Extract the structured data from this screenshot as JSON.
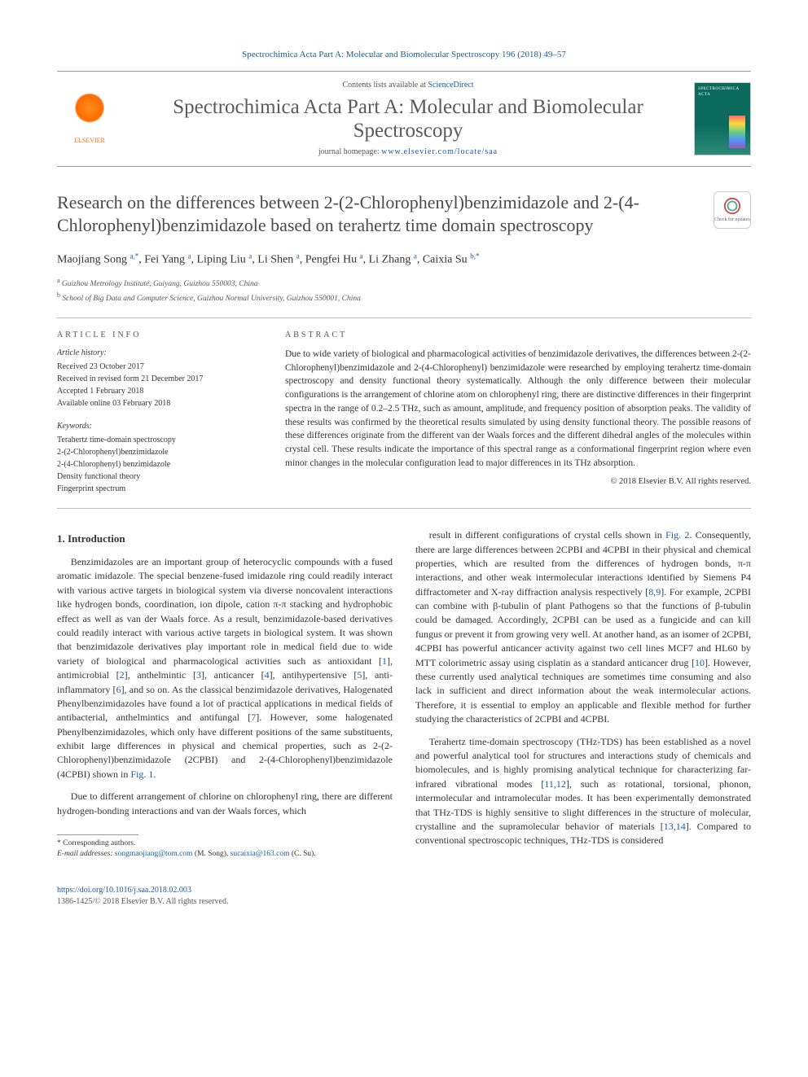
{
  "journal_ref": "Spectrochimica Acta Part A: Molecular and Biomolecular Spectroscopy 196 (2018) 49–57",
  "header": {
    "contents_prefix": "Contents lists available at ",
    "contents_link": "ScienceDirect",
    "journal_title": "Spectrochimica Acta Part A: Molecular and Biomolecular Spectroscopy",
    "homepage_prefix": "journal homepage: ",
    "homepage_url": "www.elsevier.com/locate/saa",
    "elsevier_label": "ELSEVIER"
  },
  "article": {
    "title": "Research on the differences between 2-(2-Chlorophenyl)benzimidazole and 2-(4-Chlorophenyl)benzimidazole based on terahertz time domain spectroscopy",
    "check_badge": "Check for updates"
  },
  "authors_html": "Maojiang Song <sup>a,*</sup>, Fei Yang <sup>a</sup>, Liping Liu <sup>a</sup>, Li Shen <sup>a</sup>, Pengfei Hu <sup>a</sup>, Li Zhang <sup>a</sup>, Caixia Su <sup>b,*</sup>",
  "affiliations": [
    {
      "sup": "a",
      "text": "Guizhou Metrology Institute, Guiyang, Guizhou 550003, China"
    },
    {
      "sup": "b",
      "text": "School of Big Data and Computer Science, Guizhou Normal University, Guizhou 550001, China"
    }
  ],
  "info_label": "ARTICLE INFO",
  "abstract_label": "ABSTRACT",
  "history": {
    "label": "Article history:",
    "items": [
      "Received 23 October 2017",
      "Received in revised form 21 December 2017",
      "Accepted 1 February 2018",
      "Available online 03 February 2018"
    ]
  },
  "keywords": {
    "label": "Keywords:",
    "items": [
      "Terahertz time-domain spectroscopy",
      "2-(2-Chlorophenyl)benzimidazole",
      "2-(4-Chlorophenyl) benzimidazole",
      "Density functional theory",
      "Fingerprint spectrum"
    ]
  },
  "abstract": "Due to wide variety of biological and pharmacological activities of benzimidazole derivatives, the differences between 2-(2-Chlorophenyl)benzimidazole and 2-(4-Chlorophenyl) benzimidazole were researched by employing terahertz time-domain spectroscopy and density functional theory systematically. Although the only difference between their molecular configurations is the arrangement of chlorine atom on chlorophenyl ring, there are distinctive differences in their fingerprint spectra in the range of 0.2–2.5 THz, such as amount, amplitude, and frequency position of absorption peaks. The validity of these results was confirmed by the theoretical results simulated by using density functional theory. The possible reasons of these differences originate from the different van der Waals forces and the different dihedral angles of the molecules within crystal cell. These results indicate the importance of this spectral range as a conformational fingerprint region where even minor changes in the molecular configuration lead to major differences in its THz absorption.",
  "copyright": "© 2018 Elsevier B.V. All rights reserved.",
  "intro_heading": "1. Introduction",
  "intro_p1": "Benzimidazoles are an important group of heterocyclic compounds with a fused aromatic imidazole. The special benzene-fused imidazole ring could readily interact with various active targets in biological system via diverse noncovalent interactions like hydrogen bonds, coordination, ion dipole, cation π-π stacking and hydrophobic effect as well as van der Waals force. As a result, benzimidazole-based derivatives could readily interact with various active targets in biological system. It was shown that benzimidazole derivatives play important role in medical field due to wide variety of biological and pharmacological activities such as antioxidant [1], antimicrobial [2], anthelmintic [3], anticancer [4], antihypertensive [5], anti-inflammatory [6], and so on. As the classical benzimidazole derivatives, Halogenated Phenylbenzimidazoles have found a lot of practical applications in medical fields of antibacterial, anthelmintics and antifungal [7]. However, some halogenated Phenylbenzimidazoles, which only have different positions of the same substituents, exhibit large differences in physical and chemical properties, such as 2-(2-Chlorophenyl)benzimidazole (2CPBI) and 2-(4-Chlorophenyl)benzimidazole (4CPBI) shown in Fig. 1.",
  "intro_p2": "Due to different arrangement of chlorine on chlorophenyl ring, there are different hydrogen-bonding interactions and van der Waals forces, which",
  "intro_p3": "result in different configurations of crystal cells shown in Fig. 2. Consequently, there are large differences between 2CPBI and 4CPBI in their physical and chemical properties, which are resulted from the differences of hydrogen bonds, π-π interactions, and other weak intermolecular interactions identified by Siemens P4 diffractometer and X-ray diffraction analysis respectively [8,9]. For example, 2CPBI can combine with β-tubulin of plant Pathogens so that the functions of β-tubulin could be damaged. Accordingly, 2CPBI can be used as a fungicide and can kill fungus or prevent it from growing very well. At another hand, as an isomer of 2CPBI, 4CPBI has powerful anticancer activity against two cell lines MCF7 and HL60 by MTT colorimetric assay using cisplatin as a standard anticancer drug [10]. However, these currently used analytical techniques are sometimes time consuming and also lack in sufficient and direct information about the weak intermolecular actions. Therefore, it is essential to employ an applicable and flexible method for further studying the characteristics of 2CPBI and 4CPBI.",
  "intro_p4": "Terahertz time-domain spectroscopy (THz-TDS) has been established as a novel and powerful analytical tool for structures and interactions study of chemicals and biomolecules, and is highly promising analytical technique for characterizing far-infrared vibrational modes [11,12], such as rotational, torsional, phonon, intermolecular and intramolecular modes. It has been experimentally demonstrated that THz-TDS is highly sensitive to slight differences in the structure of molecular, crystalline and the supramolecular behavior of materials [13,14]. Compared to conventional spectroscopic techniques, THz-TDS is considered",
  "footnote": {
    "star": "* Corresponding authors.",
    "emails_prefix": "E-mail addresses: ",
    "email1": "songmaojiang@tom.com",
    "email1_who": " (M. Song), ",
    "email2": "sucaixia@163.com",
    "email2_who": " (C. Su)."
  },
  "footer": {
    "doi": "https://doi.org/10.1016/j.saa.2018.02.003",
    "issn": "1386-1425/© 2018 Elsevier B.V. All rights reserved."
  },
  "colors": {
    "link": "#1a5a9e",
    "heading_gray": "#4a4a4a",
    "rule": "#bbbbbb",
    "elsevier_orange": "#ff6b00"
  }
}
